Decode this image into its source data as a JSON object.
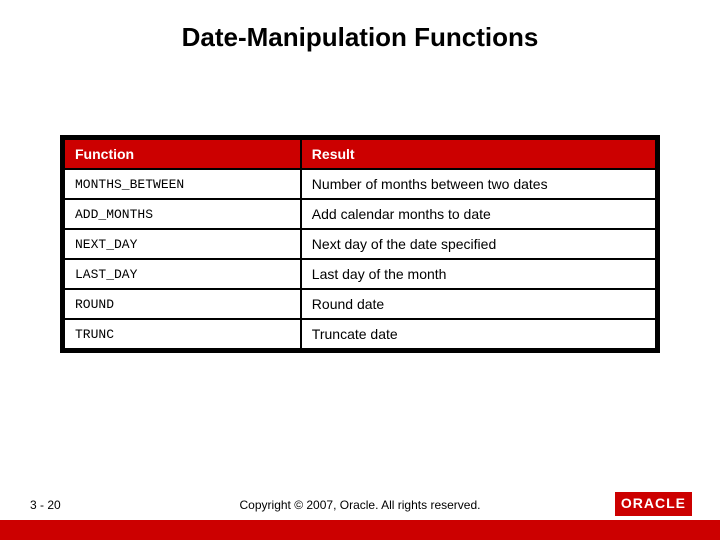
{
  "title": "Date-Manipulation Functions",
  "table": {
    "header": {
      "col1": "Function",
      "col2": "Result"
    },
    "rows": [
      {
        "fn": "MONTHS_BETWEEN",
        "res": "Number of months between two dates"
      },
      {
        "fn": "ADD_MONTHS",
        "res": "Add calendar months to date"
      },
      {
        "fn": "NEXT_DAY",
        "res": "Next day of the date specified"
      },
      {
        "fn": "LAST_DAY",
        "res": "Last day of the month"
      },
      {
        "fn": "ROUND",
        "res": "Round date"
      },
      {
        "fn": "TRUNC",
        "res": "Truncate date"
      }
    ],
    "header_bg": "#cc0000",
    "header_color": "#ffffff",
    "border_color": "#000000",
    "cell_bg": "#ffffff"
  },
  "footer": {
    "page": "3 - 20",
    "copyright": "Copyright © 2007, Oracle. All rights reserved.",
    "logo_text": "ORACLE",
    "bar_color": "#cc0000"
  }
}
